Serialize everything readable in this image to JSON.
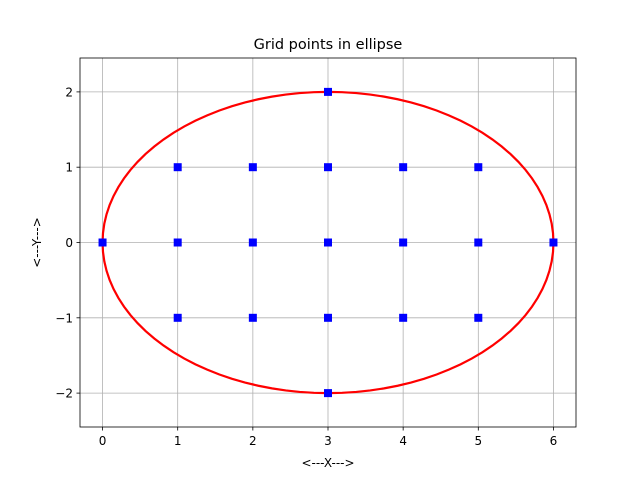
{
  "chart_data": {
    "type": "scatter",
    "title": "Grid points in ellipse",
    "xlabel": "<---X--->",
    "ylabel": "<---Y--->",
    "xlim": [
      -0.3,
      6.3
    ],
    "ylim": [
      -2.45,
      2.45
    ],
    "xticks": [
      0,
      1,
      2,
      3,
      4,
      5,
      6
    ],
    "yticks": [
      -2,
      -1,
      0,
      1,
      2
    ],
    "grid": true,
    "legend": "none",
    "series": [
      {
        "kind": "line",
        "color": "#ff0000",
        "ellipse": {
          "center": [
            3,
            0
          ],
          "a": 3,
          "b": 2
        }
      },
      {
        "kind": "points",
        "marker": "square",
        "color": "#0000ff",
        "points": [
          [
            0,
            0
          ],
          [
            1,
            -1
          ],
          [
            1,
            0
          ],
          [
            1,
            1
          ],
          [
            2,
            -1
          ],
          [
            2,
            0
          ],
          [
            2,
            1
          ],
          [
            3,
            -2
          ],
          [
            3,
            -1
          ],
          [
            3,
            0
          ],
          [
            3,
            1
          ],
          [
            3,
            2
          ],
          [
            4,
            -1
          ],
          [
            4,
            0
          ],
          [
            4,
            1
          ],
          [
            5,
            -1
          ],
          [
            5,
            0
          ],
          [
            5,
            1
          ],
          [
            6,
            0
          ]
        ]
      }
    ]
  }
}
